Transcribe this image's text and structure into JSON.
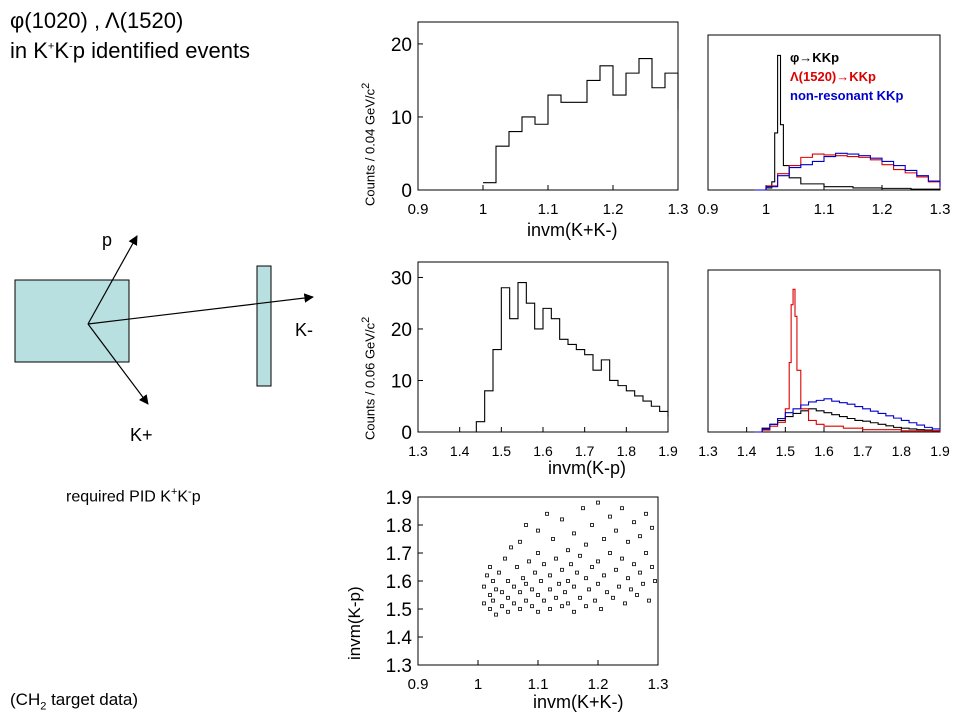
{
  "header": {
    "title_line1": "φ(1020) , Λ(1520)",
    "title_line2_prefix": "in K",
    "title_line2_sup1": "+",
    "title_line2_mid": "K",
    "title_line2_sup2": "-",
    "title_line2_suffix": "p identified events"
  },
  "diagram": {
    "proton_label": "p",
    "kminus_label": "K-",
    "kplus_label": "K+",
    "target_color": "#b8e0e0",
    "caption_prefix": "required PID K",
    "caption_sup1": "+",
    "caption_mid": "K",
    "caption_sup2": "-",
    "caption_suffix": "p"
  },
  "footer": {
    "target_note_prefix": "(CH",
    "target_note_sub": "2",
    "target_note_suffix": " target data)"
  },
  "legend": {
    "phi": "φ→KKp",
    "lambda": "Λ(1520)→KKp",
    "nonres": "non-resonant KKp",
    "phi_color": "#000000",
    "lambda_color": "#dd0000",
    "nonres_color": "#0000cc"
  },
  "axis_texts": {
    "ylabel_top": "Counts / 0.04 GeV/c",
    "ylabel_top_sup": "2",
    "ylabel_mid": "Counts / 0.06 GeV/c",
    "ylabel_mid_sup": "2",
    "xlabel_top": "invm(K+K-)",
    "xlabel_mid": "invm(K-p)",
    "xlabel_bottom": "invm(K+K-)",
    "ylabel_bottom": "invm(K-p)"
  },
  "chart_data": [
    {
      "id": "data-kk",
      "type": "line",
      "xlabel": "invm(K+K-)",
      "ylabel": "Counts / 0.04 GeV/c2",
      "xlim": [
        0.9,
        1.3
      ],
      "ylim": [
        0,
        23
      ],
      "x_ticks": [
        "0.9",
        "1",
        "1.1",
        "1.2",
        "1.3"
      ],
      "y_ticks": [
        "0",
        "10",
        "20"
      ],
      "series": [
        {
          "color": "#000000",
          "x": [
            1.0,
            1.02,
            1.04,
            1.06,
            1.08,
            1.1,
            1.12,
            1.14,
            1.16,
            1.18,
            1.2,
            1.22,
            1.24,
            1.26,
            1.28,
            1.3
          ],
          "values": [
            1,
            6,
            8,
            10,
            9,
            13,
            12,
            12,
            15,
            17,
            13,
            16,
            18,
            14,
            16,
            11
          ]
        }
      ]
    },
    {
      "id": "sim-kk",
      "type": "line",
      "xlim": [
        0.9,
        1.3
      ],
      "ylim": [
        0,
        380
      ],
      "x_ticks": [
        "0.9",
        "1",
        "1.1",
        "1.2",
        "1.3"
      ],
      "series": [
        {
          "name": "φ→KKp",
          "color": "#000000",
          "x": [
            0.98,
            1.0,
            1.01,
            1.015,
            1.02,
            1.025,
            1.03,
            1.04,
            1.06,
            1.1,
            1.15,
            1.2,
            1.25,
            1.3
          ],
          "values": [
            0,
            5,
            20,
            140,
            330,
            160,
            60,
            30,
            15,
            8,
            5,
            4,
            2,
            0
          ]
        },
        {
          "name": "Λ(1520)→KKp",
          "color": "#dd0000",
          "x": [
            0.98,
            1.0,
            1.02,
            1.04,
            1.06,
            1.08,
            1.1,
            1.12,
            1.14,
            1.16,
            1.18,
            1.2,
            1.22,
            1.24,
            1.26,
            1.28,
            1.3
          ],
          "values": [
            0,
            10,
            40,
            60,
            80,
            88,
            86,
            84,
            82,
            80,
            74,
            62,
            50,
            42,
            32,
            20,
            5
          ]
        },
        {
          "name": "non-resonant KKp",
          "color": "#0000cc",
          "x": [
            0.98,
            1.0,
            1.02,
            1.04,
            1.06,
            1.08,
            1.1,
            1.12,
            1.14,
            1.16,
            1.18,
            1.2,
            1.22,
            1.24,
            1.26,
            1.28,
            1.3
          ],
          "values": [
            0,
            8,
            35,
            55,
            62,
            70,
            82,
            90,
            88,
            84,
            78,
            70,
            60,
            48,
            35,
            22,
            8
          ]
        }
      ]
    },
    {
      "id": "data-kp",
      "type": "line",
      "xlabel": "invm(K-p)",
      "ylabel": "Counts / 0.06 GeV/c2",
      "xlim": [
        1.3,
        1.9
      ],
      "ylim": [
        0,
        33
      ],
      "x_ticks": [
        "1.3",
        "1.4",
        "1.5",
        "1.6",
        "1.7",
        "1.8",
        "1.9"
      ],
      "y_ticks": [
        "0",
        "10",
        "20",
        "30"
      ],
      "series": [
        {
          "color": "#000000",
          "x": [
            1.42,
            1.44,
            1.46,
            1.48,
            1.5,
            1.52,
            1.54,
            1.56,
            1.58,
            1.6,
            1.62,
            1.64,
            1.66,
            1.68,
            1.7,
            1.72,
            1.74,
            1.76,
            1.78,
            1.8,
            1.82,
            1.84,
            1.86,
            1.88,
            1.9
          ],
          "values": [
            0,
            2,
            8,
            16,
            28,
            22,
            29,
            25,
            20,
            24,
            22,
            18,
            17,
            16,
            15,
            12,
            14,
            10,
            9,
            8,
            7,
            6,
            5,
            4,
            3
          ]
        }
      ]
    },
    {
      "id": "sim-kp",
      "type": "line",
      "xlim": [
        1.3,
        1.9
      ],
      "ylim": [
        0,
        420
      ],
      "x_ticks": [
        "1.3",
        "1.4",
        "1.5",
        "1.6",
        "1.7",
        "1.8",
        "1.9"
      ],
      "series": [
        {
          "name": "φ→KKp",
          "color": "#000000",
          "x": [
            1.42,
            1.44,
            1.46,
            1.48,
            1.5,
            1.52,
            1.54,
            1.56,
            1.58,
            1.6,
            1.62,
            1.64,
            1.66,
            1.68,
            1.7,
            1.72,
            1.74,
            1.76,
            1.78,
            1.8,
            1.82,
            1.84,
            1.86,
            1.88,
            1.9
          ],
          "values": [
            0,
            10,
            20,
            30,
            40,
            48,
            55,
            60,
            55,
            50,
            45,
            40,
            35,
            30,
            28,
            24,
            20,
            16,
            12,
            10,
            8,
            6,
            5,
            3,
            2
          ]
        },
        {
          "name": "Λ(1520)→KKp",
          "color": "#dd0000",
          "x": [
            1.42,
            1.44,
            1.46,
            1.48,
            1.5,
            1.51,
            1.515,
            1.52,
            1.525,
            1.53,
            1.54,
            1.56,
            1.58,
            1.6,
            1.65,
            1.7,
            1.8,
            1.9
          ],
          "values": [
            0,
            5,
            15,
            25,
            60,
            180,
            330,
            370,
            300,
            160,
            60,
            30,
            20,
            15,
            10,
            6,
            3,
            0
          ]
        },
        {
          "name": "non-resonant KKp",
          "color": "#0000cc",
          "x": [
            1.42,
            1.44,
            1.46,
            1.48,
            1.5,
            1.52,
            1.54,
            1.56,
            1.58,
            1.6,
            1.62,
            1.64,
            1.66,
            1.68,
            1.7,
            1.72,
            1.74,
            1.76,
            1.78,
            1.8,
            1.82,
            1.84,
            1.86,
            1.88,
            1.9
          ],
          "values": [
            0,
            8,
            20,
            35,
            50,
            60,
            70,
            78,
            82,
            86,
            80,
            76,
            72,
            66,
            60,
            54,
            48,
            42,
            36,
            30,
            24,
            18,
            12,
            8,
            4
          ]
        }
      ]
    },
    {
      "id": "scatter",
      "type": "scatter",
      "xlabel": "invm(K+K-)",
      "ylabel": "invm(K-p)",
      "xlim": [
        0.9,
        1.3
      ],
      "ylim": [
        1.3,
        1.9
      ],
      "x_ticks": [
        "0.9",
        "1",
        "1.1",
        "1.2",
        "1.3"
      ],
      "y_ticks": [
        "1.3",
        "1.4",
        "1.5",
        "1.6",
        "1.7",
        "1.8",
        "1.9"
      ],
      "points": [
        [
          1.01,
          1.52
        ],
        [
          1.01,
          1.58
        ],
        [
          1.015,
          1.62
        ],
        [
          1.02,
          1.5
        ],
        [
          1.02,
          1.55
        ],
        [
          1.02,
          1.65
        ],
        [
          1.025,
          1.53
        ],
        [
          1.025,
          1.6
        ],
        [
          1.03,
          1.48
        ],
        [
          1.03,
          1.57
        ],
        [
          1.035,
          1.63
        ],
        [
          1.04,
          1.51
        ],
        [
          1.04,
          1.56
        ],
        [
          1.045,
          1.68
        ],
        [
          1.05,
          1.49
        ],
        [
          1.05,
          1.54
        ],
        [
          1.05,
          1.6
        ],
        [
          1.055,
          1.72
        ],
        [
          1.06,
          1.52
        ],
        [
          1.06,
          1.58
        ],
        [
          1.065,
          1.65
        ],
        [
          1.07,
          1.5
        ],
        [
          1.07,
          1.56
        ],
        [
          1.07,
          1.74
        ],
        [
          1.075,
          1.61
        ],
        [
          1.08,
          1.53
        ],
        [
          1.08,
          1.59
        ],
        [
          1.08,
          1.8
        ],
        [
          1.085,
          1.67
        ],
        [
          1.09,
          1.51
        ],
        [
          1.09,
          1.57
        ],
        [
          1.095,
          1.63
        ],
        [
          1.1,
          1.49
        ],
        [
          1.1,
          1.55
        ],
        [
          1.1,
          1.7
        ],
        [
          1.1,
          1.78
        ],
        [
          1.105,
          1.6
        ],
        [
          1.11,
          1.53
        ],
        [
          1.11,
          1.66
        ],
        [
          1.115,
          1.84
        ],
        [
          1.12,
          1.5
        ],
        [
          1.12,
          1.57
        ],
        [
          1.12,
          1.62
        ],
        [
          1.125,
          1.75
        ],
        [
          1.13,
          1.54
        ],
        [
          1.13,
          1.68
        ],
        [
          1.135,
          1.59
        ],
        [
          1.14,
          1.51
        ],
        [
          1.14,
          1.64
        ],
        [
          1.14,
          1.82
        ],
        [
          1.145,
          1.56
        ],
        [
          1.15,
          1.52
        ],
        [
          1.15,
          1.6
        ],
        [
          1.15,
          1.71
        ],
        [
          1.155,
          1.66
        ],
        [
          1.16,
          1.49
        ],
        [
          1.16,
          1.58
        ],
        [
          1.16,
          1.77
        ],
        [
          1.165,
          1.63
        ],
        [
          1.17,
          1.54
        ],
        [
          1.17,
          1.69
        ],
        [
          1.175,
          1.86
        ],
        [
          1.18,
          1.51
        ],
        [
          1.18,
          1.61
        ],
        [
          1.18,
          1.73
        ],
        [
          1.185,
          1.57
        ],
        [
          1.19,
          1.65
        ],
        [
          1.19,
          1.8
        ],
        [
          1.195,
          1.53
        ],
        [
          1.2,
          1.59
        ],
        [
          1.2,
          1.67
        ],
        [
          1.2,
          1.88
        ],
        [
          1.205,
          1.5
        ],
        [
          1.21,
          1.62
        ],
        [
          1.21,
          1.75
        ],
        [
          1.215,
          1.56
        ],
        [
          1.22,
          1.7
        ],
        [
          1.22,
          1.83
        ],
        [
          1.225,
          1.54
        ],
        [
          1.23,
          1.64
        ],
        [
          1.23,
          1.78
        ],
        [
          1.235,
          1.58
        ],
        [
          1.24,
          1.68
        ],
        [
          1.24,
          1.86
        ],
        [
          1.245,
          1.52
        ],
        [
          1.25,
          1.61
        ],
        [
          1.25,
          1.74
        ],
        [
          1.255,
          1.57
        ],
        [
          1.26,
          1.66
        ],
        [
          1.26,
          1.81
        ],
        [
          1.265,
          1.55
        ],
        [
          1.27,
          1.63
        ],
        [
          1.27,
          1.76
        ],
        [
          1.275,
          1.59
        ],
        [
          1.28,
          1.7
        ],
        [
          1.28,
          1.84
        ],
        [
          1.285,
          1.53
        ],
        [
          1.29,
          1.65
        ],
        [
          1.29,
          1.79
        ],
        [
          1.295,
          1.6
        ]
      ]
    }
  ]
}
